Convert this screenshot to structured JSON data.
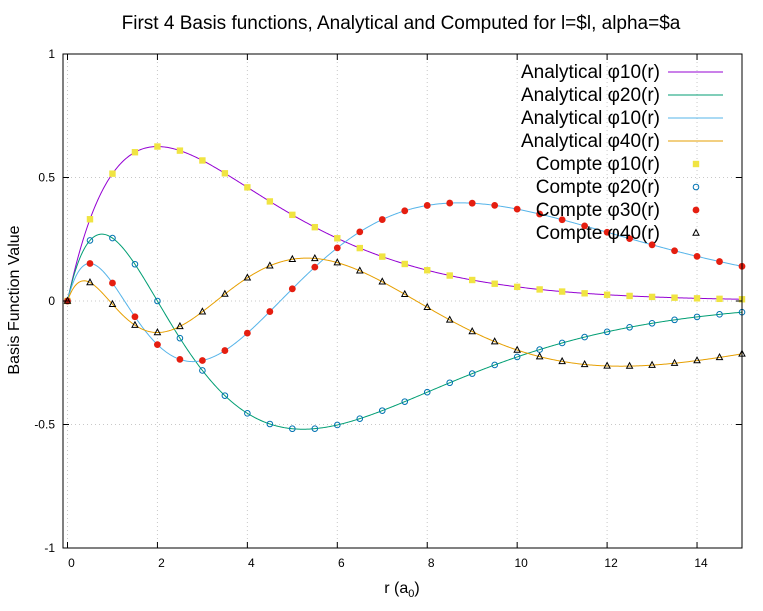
{
  "chart_data": {
    "type": "line",
    "title": "First 4 Basis functions, Analytical and Computed for l=$l, alpha=$a",
    "xlabel": "r (a",
    "xlabel_sub": "0",
    "xlabel_close": ")",
    "ylabel": "Basis Function Value",
    "xlim": [
      -0.1,
      15
    ],
    "ylim": [
      -1,
      1
    ],
    "xticks": [
      0,
      2,
      4,
      6,
      8,
      10,
      12,
      14
    ],
    "xtick_labels": [
      "0",
      "2",
      "4",
      "6",
      "8",
      "10",
      "12",
      "14"
    ],
    "yticks": [
      -1,
      -0.5,
      0,
      0.5,
      1
    ],
    "ytick_labels": [
      "-1",
      "-0.5",
      "0",
      "0.5",
      "1"
    ],
    "grid": true,
    "legend_position": "top-right",
    "series": [
      {
        "name": "Analytical φ10(r)",
        "kind": "line",
        "color": "#9400d3",
        "func": "phi1"
      },
      {
        "name": "Analytical φ20(r)",
        "kind": "line",
        "color": "#009e73",
        "func": "phi2"
      },
      {
        "name": "Analytical φ10(r)",
        "kind": "line",
        "color": "#56b4e9",
        "func": "phi3"
      },
      {
        "name": "Analytical φ40(r)",
        "kind": "line",
        "color": "#e69f00",
        "func": "phi4"
      },
      {
        "name": "Compte φ10(r)",
        "kind": "points",
        "marker": "square",
        "color": "#f0e442",
        "func": "phi1"
      },
      {
        "name": "Compte φ20(r)",
        "kind": "points",
        "marker": "circle-open",
        "color": "#0072b2",
        "func": "phi2"
      },
      {
        "name": "Compte φ30(r)",
        "kind": "points",
        "marker": "circle-filled",
        "color": "#e51e10",
        "func": "phi3"
      },
      {
        "name": "Compte φ40(r)",
        "kind": "points",
        "marker": "triangle-open",
        "color": "#000000",
        "func": "phi4"
      }
    ]
  }
}
